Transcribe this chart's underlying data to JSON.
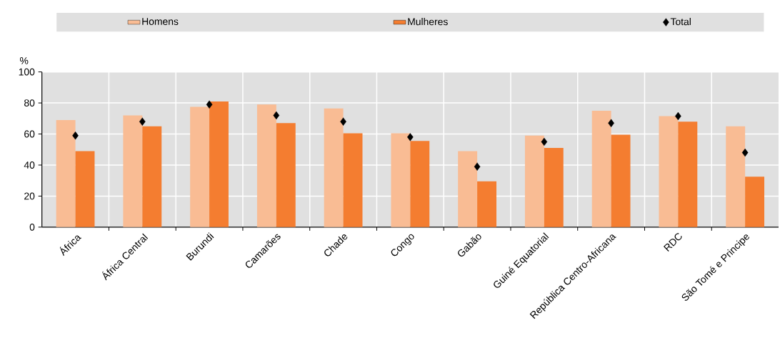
{
  "chart_data": {
    "type": "bar",
    "ylabel": "%",
    "categories": [
      "África",
      "África Central",
      "Burundi",
      "Camarões",
      "Chade",
      "Congo",
      "Gabão",
      "Guiné Equatorial",
      "República Centro-Africana",
      "RDC",
      "São Tomé e Principe"
    ],
    "series": [
      {
        "name": "Homens",
        "color": "#f9bc94",
        "values": [
          69,
          72,
          77.5,
          79,
          76.5,
          60.5,
          49,
          59,
          75,
          71.5,
          65
        ]
      },
      {
        "name": "Mulheres",
        "color": "#f47d30",
        "values": [
          49,
          65,
          81,
          67,
          60.5,
          55.5,
          29.5,
          51,
          59.5,
          68,
          32.5
        ]
      },
      {
        "name": "Total",
        "type": "scatter",
        "color": "#000000",
        "marker": "diamond",
        "x": [
          "África",
          "África Central",
          "Burundi",
          "Camarões",
          "Chade",
          "Congo",
          "Gabão",
          "Guiné Equatorial",
          "República Centro-Africana",
          "RDC",
          "São Tomé e Principe"
        ],
        "values": [
          59,
          68,
          79,
          72,
          68,
          58,
          39,
          55,
          67,
          71.5,
          48
        ]
      }
    ],
    "ylim": [
      0,
      100
    ],
    "yticks": [
      0,
      20,
      40,
      60,
      80,
      100
    ],
    "grid": true,
    "legend": "top"
  }
}
